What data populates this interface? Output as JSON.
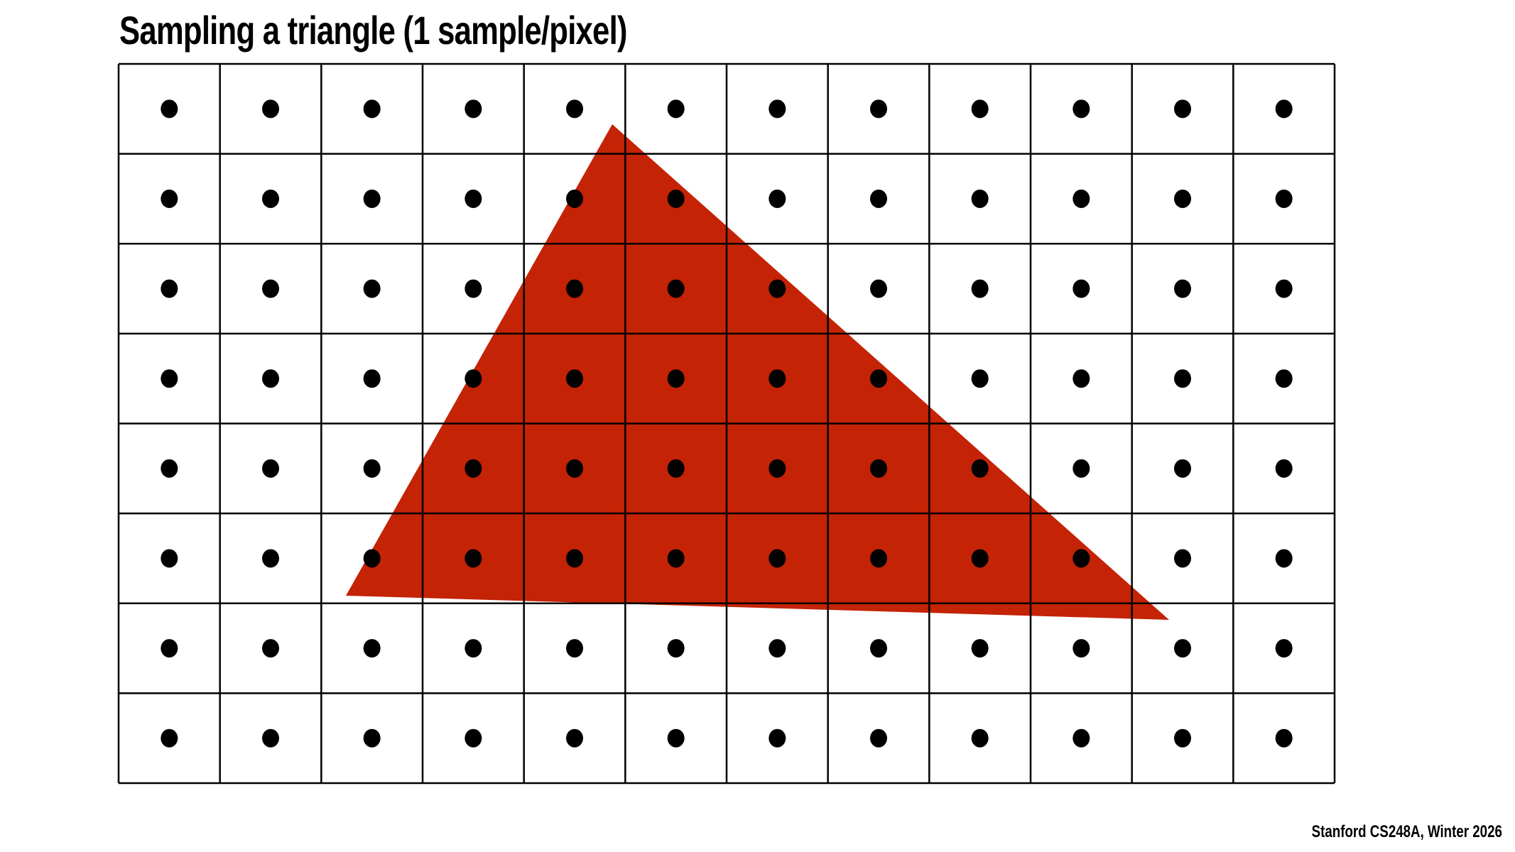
{
  "title": "Sampling a triangle (1 sample/pixel)",
  "footer": "Stanford CS248A, Winter 2026",
  "grid": {
    "columns": 12,
    "rows": 8,
    "line_color": "#000000",
    "sample_color": "#000000"
  },
  "triangle": {
    "fill_color": "#C42306"
  }
}
